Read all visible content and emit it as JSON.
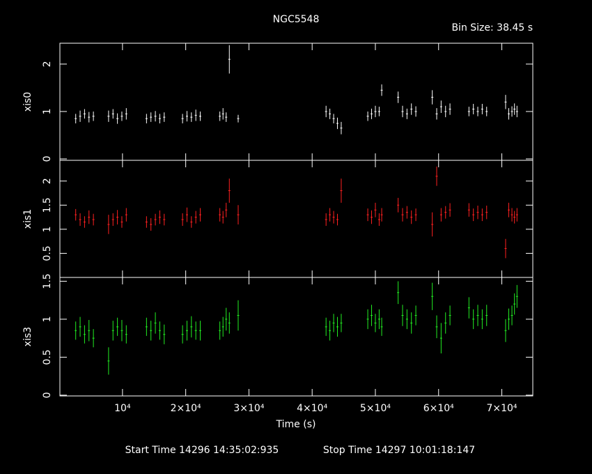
{
  "title": "NGC5548",
  "bin_size_label": "Bin Size: 38.45 s",
  "x_label": "Time (s)",
  "start_time": "Start Time 14296 14:35:02:935",
  "stop_time": "Stop Time 14297 10:01:18:147",
  "chart_data": [
    {
      "type": "errorbar",
      "y_label": "xis0",
      "color": "#ffffff",
      "xlim": [
        100,
        74900
      ],
      "ylim": [
        -0.03,
        2.44
      ],
      "yticks": [
        0,
        1,
        2
      ],
      "x": [
        2600,
        3300,
        4000,
        4700,
        5400,
        7800,
        8500,
        9200,
        9900,
        10600,
        13800,
        14500,
        15200,
        15900,
        16600,
        19500,
        20200,
        20900,
        21600,
        22300,
        25400,
        25900,
        26400,
        26900,
        28300,
        42200,
        42800,
        43400,
        44000,
        44600,
        48800,
        49400,
        50000,
        50600,
        51000,
        53600,
        54300,
        55000,
        55700,
        56400,
        59000,
        59700,
        60400,
        61100,
        61800,
        64800,
        65500,
        66200,
        66900,
        67600,
        70600,
        71100,
        71600,
        72000,
        72400
      ],
      "values": [
        0.85,
        0.9,
        0.95,
        0.88,
        0.9,
        0.9,
        0.95,
        0.85,
        0.9,
        0.95,
        0.85,
        0.88,
        0.9,
        0.85,
        0.88,
        0.85,
        0.9,
        0.88,
        0.92,
        0.9,
        0.9,
        0.95,
        0.88,
        2.1,
        0.85,
        1.0,
        0.95,
        0.85,
        0.75,
        0.65,
        0.9,
        0.95,
        1.0,
        1.0,
        1.45,
        1.3,
        1.0,
        0.95,
        1.05,
        1.0,
        1.3,
        0.95,
        1.1,
        1.0,
        1.05,
        1.0,
        1.05,
        1.0,
        1.05,
        1.0,
        1.2,
        0.95,
        1.0,
        1.05,
        1.0
      ],
      "errors": [
        0.1,
        0.12,
        0.1,
        0.11,
        0.1,
        0.12,
        0.1,
        0.11,
        0.1,
        0.12,
        0.1,
        0.1,
        0.11,
        0.1,
        0.1,
        0.1,
        0.11,
        0.1,
        0.12,
        0.1,
        0.1,
        0.12,
        0.1,
        0.3,
        0.08,
        0.12,
        0.11,
        0.1,
        0.12,
        0.13,
        0.1,
        0.11,
        0.12,
        0.1,
        0.12,
        0.12,
        0.12,
        0.11,
        0.12,
        0.11,
        0.15,
        0.12,
        0.13,
        0.12,
        0.12,
        0.1,
        0.11,
        0.1,
        0.11,
        0.1,
        0.15,
        0.12,
        0.11,
        0.12,
        0.12
      ]
    },
    {
      "type": "errorbar",
      "y_label": "xis1",
      "color": "#ff2020",
      "xlim": [
        100,
        74900
      ],
      "ylim": [
        0,
        2.43
      ],
      "yticks": [
        0.5,
        1,
        1.5,
        2
      ],
      "x": [
        2600,
        3300,
        4000,
        4700,
        5400,
        7800,
        8500,
        9200,
        9900,
        10600,
        13800,
        14500,
        15200,
        15900,
        16600,
        19500,
        20200,
        20900,
        21600,
        22300,
        25400,
        25900,
        26400,
        26900,
        28300,
        42200,
        42800,
        43400,
        44000,
        44600,
        48800,
        49400,
        50000,
        50600,
        51000,
        53600,
        54300,
        55000,
        55700,
        56400,
        59000,
        59700,
        60400,
        61100,
        61800,
        64800,
        65500,
        66200,
        66900,
        67600,
        70600,
        71100,
        71600,
        72000,
        72400
      ],
      "values": [
        1.3,
        1.2,
        1.15,
        1.25,
        1.2,
        1.1,
        1.2,
        1.25,
        1.15,
        1.3,
        1.15,
        1.1,
        1.2,
        1.25,
        1.2,
        1.2,
        1.3,
        1.15,
        1.25,
        1.3,
        1.3,
        1.25,
        1.4,
        1.8,
        1.3,
        1.2,
        1.3,
        1.25,
        1.2,
        1.8,
        1.3,
        1.25,
        1.4,
        1.2,
        1.3,
        1.5,
        1.3,
        1.35,
        1.25,
        1.3,
        1.1,
        2.1,
        1.3,
        1.35,
        1.4,
        1.4,
        1.3,
        1.35,
        1.3,
        1.35,
        0.6,
        1.4,
        1.3,
        1.25,
        1.3
      ],
      "errors": [
        0.12,
        0.13,
        0.12,
        0.14,
        0.12,
        0.2,
        0.13,
        0.15,
        0.12,
        0.14,
        0.12,
        0.13,
        0.12,
        0.14,
        0.12,
        0.13,
        0.15,
        0.12,
        0.13,
        0.14,
        0.14,
        0.13,
        0.15,
        0.25,
        0.2,
        0.13,
        0.14,
        0.13,
        0.12,
        0.25,
        0.13,
        0.14,
        0.15,
        0.13,
        0.14,
        0.15,
        0.14,
        0.13,
        0.14,
        0.13,
        0.25,
        0.2,
        0.14,
        0.13,
        0.14,
        0.14,
        0.13,
        0.14,
        0.13,
        0.14,
        0.2,
        0.15,
        0.14,
        0.13,
        0.14
      ]
    },
    {
      "type": "errorbar",
      "y_label": "xis3",
      "color": "#22ee22",
      "xlim": [
        100,
        74900
      ],
      "ylim": [
        -0.01,
        1.55
      ],
      "yticks": [
        0,
        0.5,
        1,
        1.5
      ],
      "xticks": [
        {
          "value": 10000,
          "label": "10⁴"
        },
        {
          "value": 20000,
          "label": "2×10⁴"
        },
        {
          "value": 30000,
          "label": "3×10⁴"
        },
        {
          "value": 40000,
          "label": "4×10⁴"
        },
        {
          "value": 50000,
          "label": "5×10⁴"
        },
        {
          "value": 60000,
          "label": "6×10⁴"
        },
        {
          "value": 70000,
          "label": "7×10⁴"
        }
      ],
      "x": [
        2600,
        3300,
        4000,
        4700,
        5400,
        7800,
        8500,
        9200,
        9900,
        10600,
        13800,
        14500,
        15200,
        15900,
        16600,
        19500,
        20200,
        20900,
        21600,
        22300,
        25400,
        25900,
        26400,
        26900,
        28300,
        42200,
        42800,
        43400,
        44000,
        44600,
        48800,
        49400,
        50000,
        50600,
        51000,
        53600,
        54300,
        55000,
        55700,
        56400,
        59000,
        59700,
        60400,
        61100,
        61800,
        64800,
        65500,
        66200,
        66900,
        67600,
        70600,
        71100,
        71600,
        72000,
        72400
      ],
      "values": [
        0.85,
        0.9,
        0.8,
        0.85,
        0.75,
        0.45,
        0.85,
        0.9,
        0.85,
        0.8,
        0.9,
        0.85,
        0.95,
        0.85,
        0.8,
        0.8,
        0.85,
        0.9,
        0.85,
        0.85,
        0.85,
        0.9,
        1.0,
        0.95,
        1.05,
        0.9,
        0.85,
        0.95,
        0.9,
        0.95,
        1.0,
        1.05,
        0.95,
        1.0,
        0.9,
        1.35,
        1.05,
        1.0,
        0.95,
        1.05,
        1.3,
        0.9,
        0.75,
        0.95,
        1.05,
        1.15,
        1.0,
        1.05,
        1.0,
        1.05,
        0.85,
        1.0,
        1.05,
        1.2,
        1.3
      ],
      "errors": [
        0.12,
        0.13,
        0.12,
        0.14,
        0.12,
        0.18,
        0.13,
        0.12,
        0.14,
        0.12,
        0.12,
        0.13,
        0.14,
        0.12,
        0.13,
        0.12,
        0.13,
        0.14,
        0.12,
        0.13,
        0.12,
        0.13,
        0.15,
        0.14,
        0.2,
        0.12,
        0.13,
        0.12,
        0.13,
        0.12,
        0.13,
        0.14,
        0.12,
        0.13,
        0.12,
        0.15,
        0.14,
        0.13,
        0.14,
        0.13,
        0.18,
        0.15,
        0.2,
        0.14,
        0.13,
        0.14,
        0.13,
        0.14,
        0.13,
        0.14,
        0.15,
        0.14,
        0.13,
        0.14,
        0.15
      ]
    }
  ]
}
